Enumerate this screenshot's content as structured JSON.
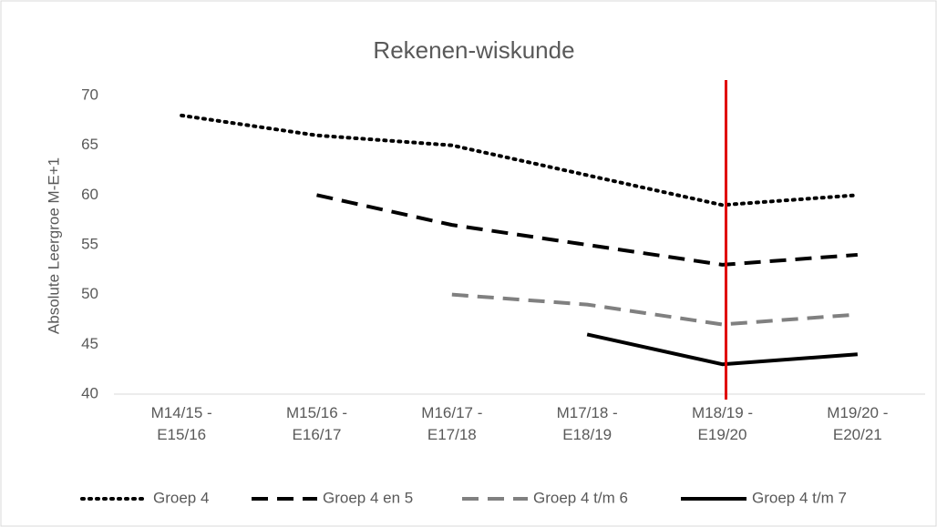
{
  "chart_data": {
    "type": "line",
    "title": "Rekenen-wiskunde",
    "y_label": "Absolute Leergroe M-E+1",
    "categories": [
      "M14/15 - E15/16",
      "M15/16 - E16/17",
      "M16/17 - E17/18",
      "M17/18 - E18/19",
      "M18/19 - E19/20",
      "M19/20 - E20/21"
    ],
    "series": [
      {
        "name": "Groep 4",
        "color": "#000000",
        "dash": "dotted",
        "values": [
          68,
          66,
          65,
          62,
          59,
          60
        ]
      },
      {
        "name": "Groep 4 en 5",
        "color": "#000000",
        "dash": "dashed",
        "values": [
          null,
          60,
          57,
          55,
          53,
          54
        ]
      },
      {
        "name": "Groep 4 t/m 6",
        "color": "#808080",
        "dash": "dashed",
        "values": [
          null,
          null,
          50,
          49,
          47,
          48
        ]
      },
      {
        "name": "Groep 4 t/m 7",
        "color": "#000000",
        "dash": "solid",
        "values": [
          null,
          null,
          null,
          46,
          43,
          44
        ]
      }
    ],
    "ylim": [
      40,
      72
    ],
    "yticks": [
      40,
      45,
      50,
      55,
      60,
      65,
      70
    ],
    "grid": false,
    "legend": "bottom",
    "vline_index": 4,
    "vline_color": "#e00000"
  }
}
